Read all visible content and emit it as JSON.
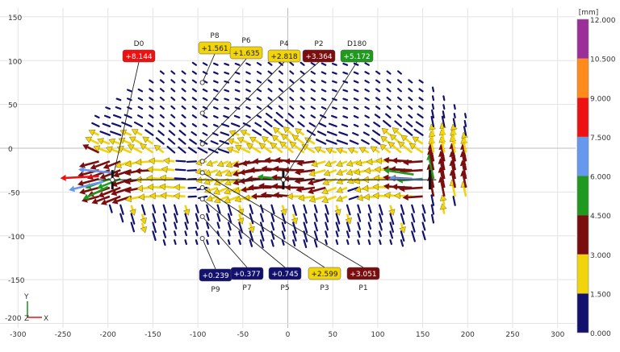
{
  "chart_data": {
    "type": "vector-field",
    "units": "[mm]",
    "xlim": [
      -320,
      320
    ],
    "ylim": [
      -205,
      160
    ],
    "x_ticks": [
      -300,
      -250,
      -200,
      -150,
      -100,
      -50,
      0,
      50,
      100,
      150,
      200,
      250,
      300
    ],
    "y_ticks": [
      150,
      100,
      50,
      0,
      -50,
      -100,
      -150,
      -200
    ],
    "grid": true,
    "colorbar": {
      "title": "[mm]",
      "ticks": [
        "12.000",
        "10.500",
        "9.000",
        "7.500",
        "6.000",
        "4.500",
        "3.000",
        "1.500",
        "0.000"
      ],
      "bands": [
        {
          "from": 0.0,
          "to": 1.5,
          "color": "#12126e"
        },
        {
          "from": 1.5,
          "to": 3.0,
          "color": "#f2d40a"
        },
        {
          "from": 3.0,
          "to": 4.5,
          "color": "#7a0e0e"
        },
        {
          "from": 4.5,
          "to": 6.0,
          "color": "#1f9a1f"
        },
        {
          "from": 6.0,
          "to": 7.5,
          "color": "#6699ee"
        },
        {
          "from": 7.5,
          "to": 9.0,
          "color": "#ee1111"
        },
        {
          "from": 9.0,
          "to": 10.5,
          "color": "#ff8c1a"
        },
        {
          "from": 10.5,
          "to": 12.0,
          "color": "#9c2e99"
        }
      ]
    },
    "structure_points": [
      {
        "x": -195,
        "y": -36
      },
      {
        "x": -5,
        "y": -36
      },
      {
        "x": 158,
        "y": -36
      }
    ],
    "callouts_top": [
      {
        "name": "D0",
        "value": "+8.144",
        "x": -195,
        "y": -36,
        "color": "#ee1111"
      },
      {
        "name": "P8",
        "value": "+1.561",
        "x": -95,
        "y": 75,
        "color": "#f2d40a"
      },
      {
        "name": "P6",
        "value": "+1.635",
        "x": -95,
        "y": 40,
        "color": "#f2d40a"
      },
      {
        "name": "P4",
        "value": "+2.818",
        "x": -95,
        "y": 5,
        "color": "#f2d40a"
      },
      {
        "name": "P2",
        "value": "+3.364",
        "x": -95,
        "y": -15,
        "color": "#7a0e0e"
      },
      {
        "name": "D180",
        "value": "+5.172",
        "x": -5,
        "y": -36,
        "color": "#1f9a1f"
      }
    ],
    "callouts_bottom": [
      {
        "name": "P9",
        "value": "+0.239",
        "x": -95,
        "y": -103,
        "color": "#12126e"
      },
      {
        "name": "P7",
        "value": "+0.377",
        "x": -95,
        "y": -78,
        "color": "#12126e"
      },
      {
        "name": "P5",
        "value": "+0.745",
        "x": -95,
        "y": -58,
        "color": "#12126e"
      },
      {
        "name": "P3",
        "value": "+2.599",
        "x": -95,
        "y": -45,
        "color": "#f2d40a"
      },
      {
        "name": "P1",
        "value": "+3.051",
        "x": -95,
        "y": -28,
        "color": "#7a0e0e"
      }
    ]
  },
  "axis_gizmo": {
    "y_label": "Y",
    "z_label": "Z",
    "x_label": "X",
    "overlap_tick": "-200"
  }
}
